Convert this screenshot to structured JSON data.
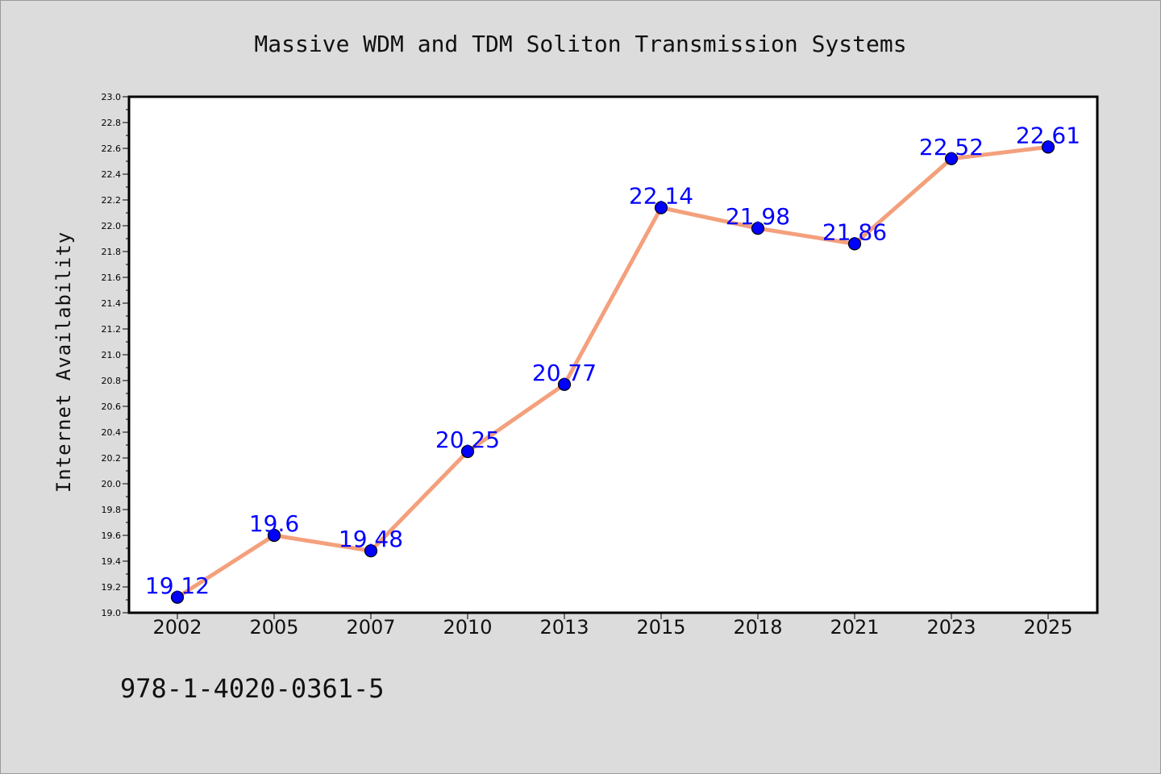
{
  "footer": {
    "code": "978-1-4020-0361-5"
  },
  "colors": {
    "line": "#f4a07c",
    "marker": "#0000ff",
    "label": "#0000ff",
    "plot_bg": "#ffffff",
    "figure_bg": "#dcdcdc"
  },
  "chart_data": {
    "type": "line",
    "title": "Massive WDM and TDM Soliton Transmission Systems",
    "xlabel": "",
    "ylabel": "Internet Availability",
    "categories": [
      "2002",
      "2005",
      "2007",
      "2010",
      "2013",
      "2015",
      "2018",
      "2021",
      "2023",
      "2025"
    ],
    "series": [
      {
        "values": [
          19.12,
          19.6,
          19.48,
          20.25,
          20.77,
          22.14,
          21.98,
          21.86,
          22.52,
          22.61
        ]
      }
    ],
    "data_labels": [
      "19.12",
      "19.6",
      "19.48",
      "20.25",
      "20.77",
      "22.14",
      "21.98",
      "21.86",
      "22.52",
      "22.61"
    ],
    "ylim": [
      19.0,
      23.0
    ],
    "yticks": [
      "19.0",
      "19.2",
      "19.4",
      "19.6",
      "19.8",
      "20.0",
      "20.2",
      "20.4",
      "20.6",
      "20.8",
      "21.0",
      "21.2",
      "21.4",
      "21.6",
      "21.8",
      "22.0",
      "22.2",
      "22.4",
      "22.6",
      "22.8",
      "23.0"
    ],
    "grid": false,
    "legend": "none"
  }
}
